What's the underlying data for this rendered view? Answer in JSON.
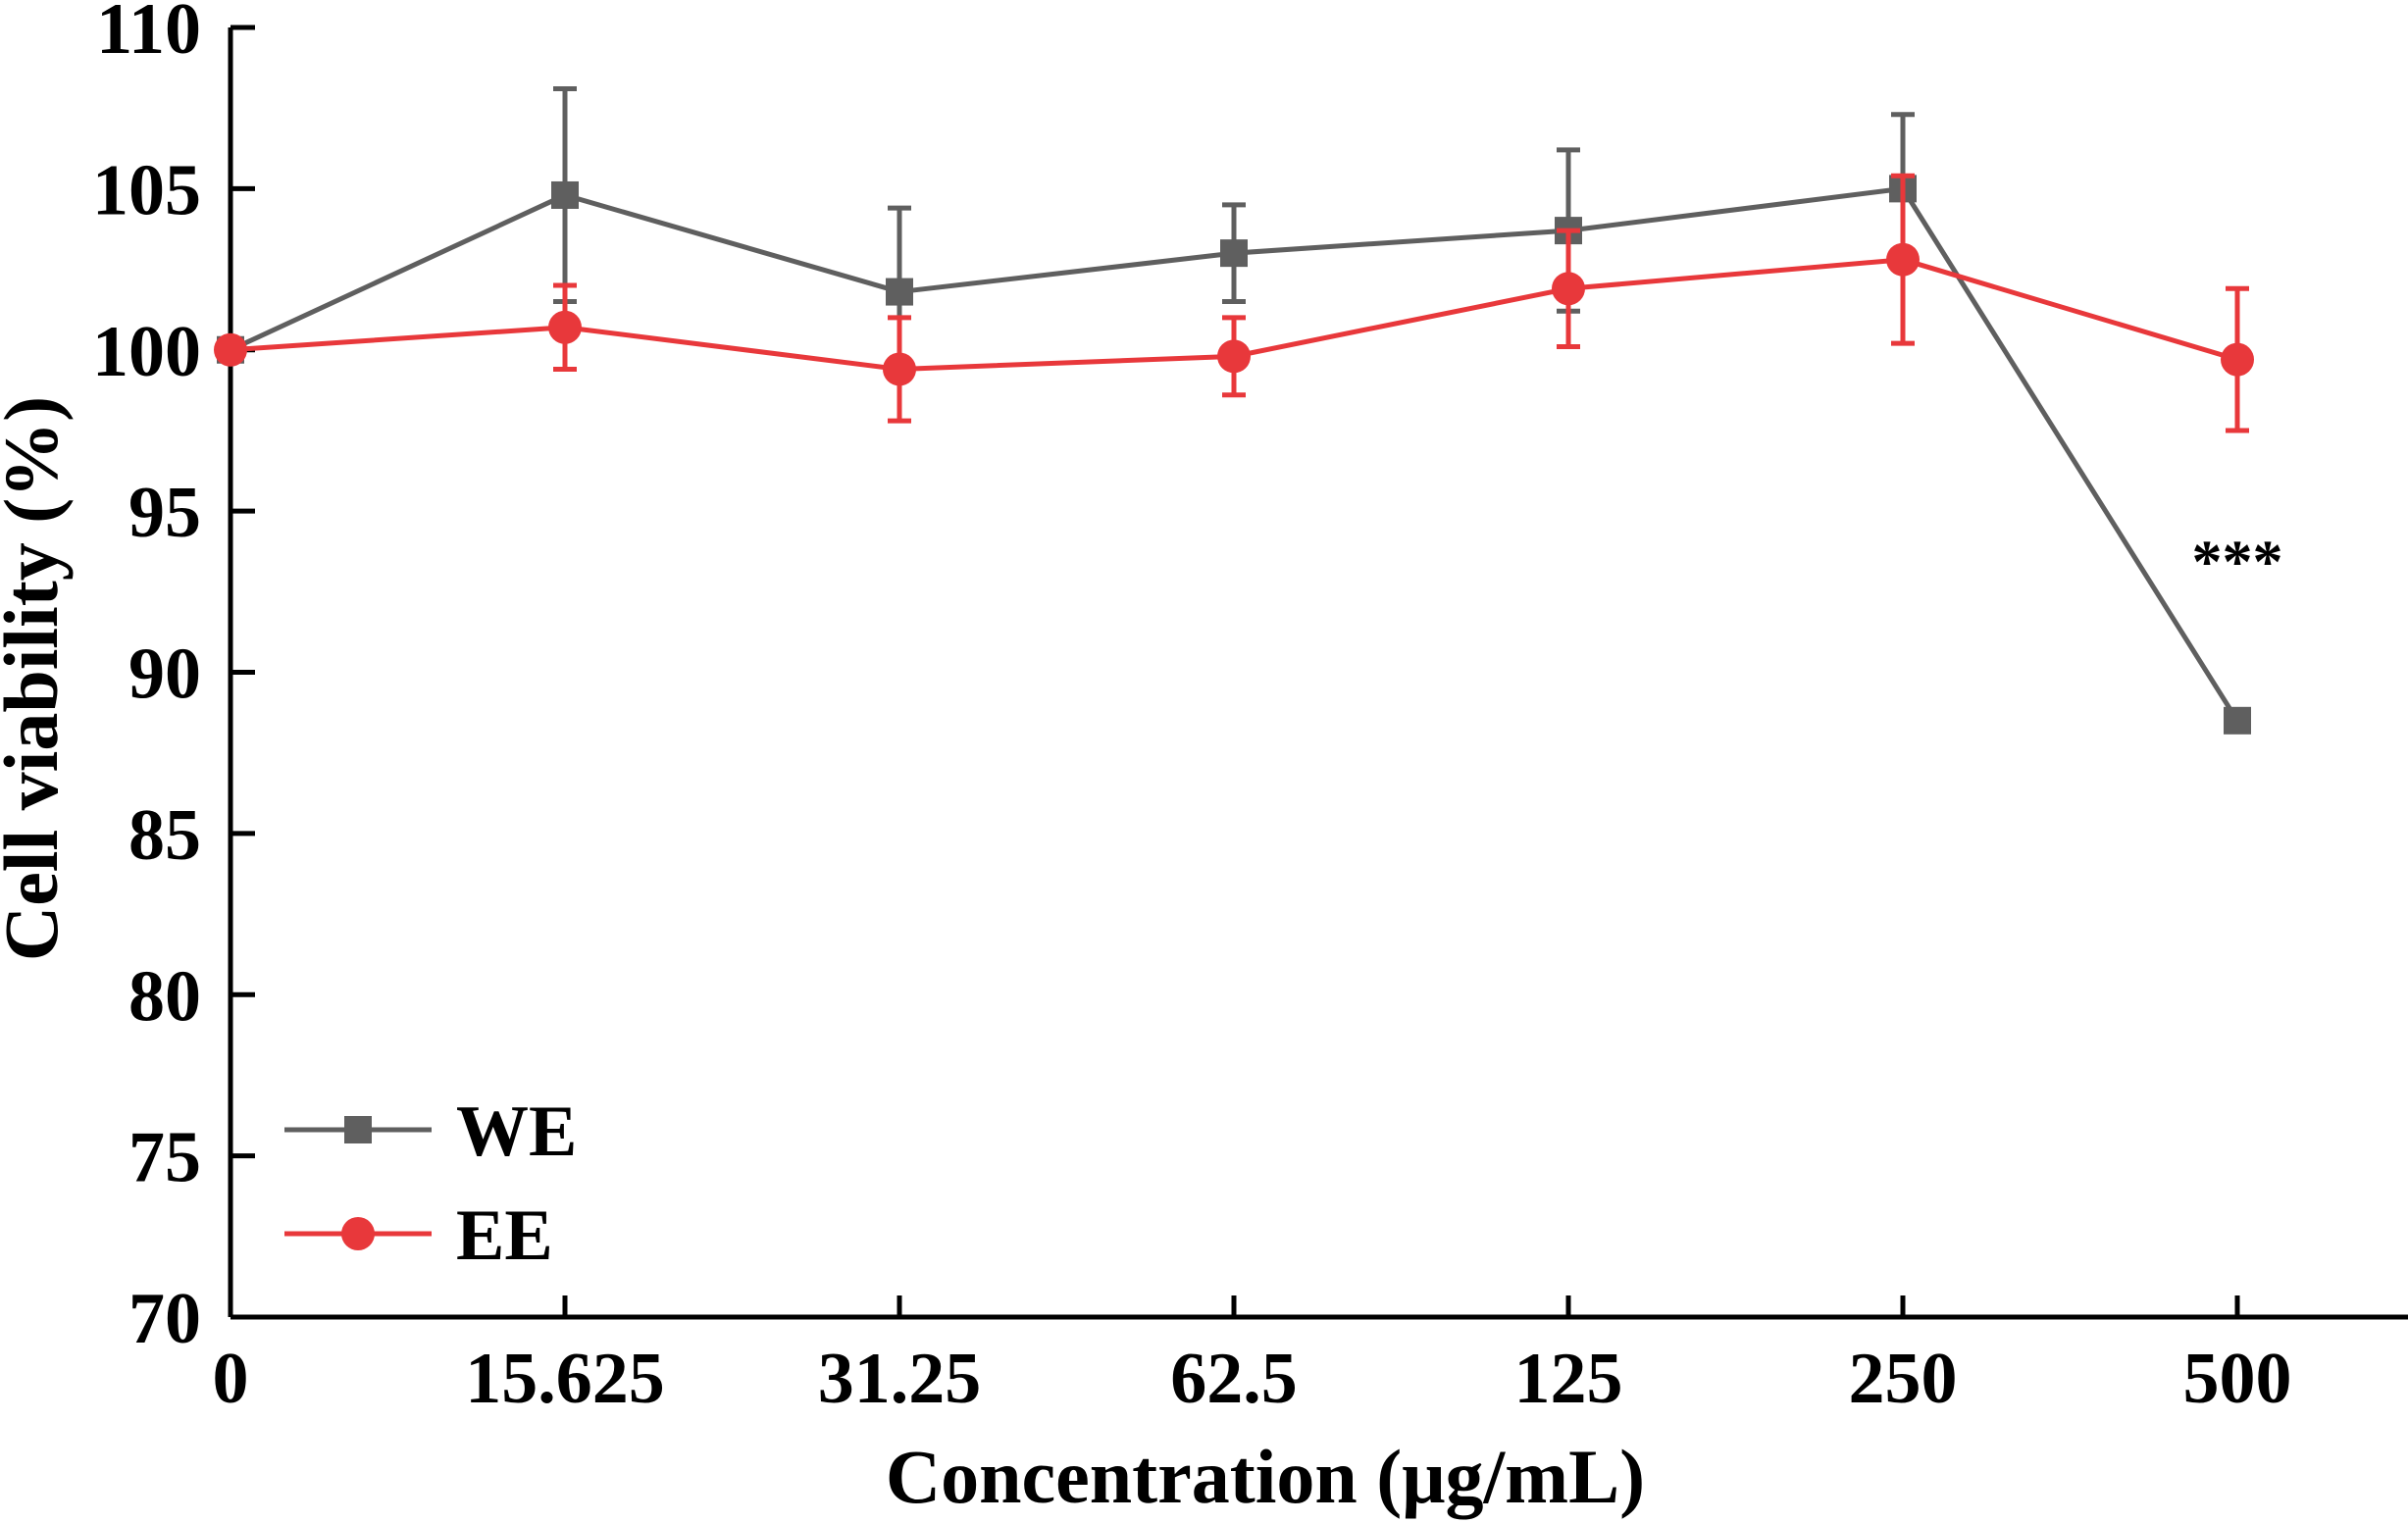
{
  "chart_data": {
    "type": "line",
    "title": "",
    "xlabel": "Concentration (μg/mL)",
    "ylabel": "Cell viability (%)",
    "categories": [
      "0",
      "15.625",
      "31.25",
      "62.5",
      "125",
      "250",
      "500"
    ],
    "ylim": [
      70,
      110
    ],
    "yticks": [
      "70",
      "75",
      "80",
      "85",
      "90",
      "95",
      "100",
      "105",
      "110"
    ],
    "grid": false,
    "legend_position": "bottom-left",
    "colors": {
      "axis": "#000000"
    },
    "series": [
      {
        "name": "WE",
        "marker": "square",
        "color": "#5f5f5f",
        "values": [
          100.0,
          104.8,
          101.8,
          103.0,
          103.7,
          105.0,
          88.5
        ],
        "errors": [
          0,
          3.3,
          2.6,
          1.5,
          2.5,
          2.3,
          0
        ]
      },
      {
        "name": "EE",
        "marker": "circle",
        "color": "#e8383b",
        "values": [
          100.0,
          100.7,
          99.4,
          99.8,
          101.9,
          102.8,
          99.7
        ],
        "errors": [
          0,
          1.3,
          1.6,
          1.2,
          1.8,
          2.6,
          2.2
        ]
      }
    ],
    "annotations": [
      {
        "text": "***",
        "category": "500",
        "y": 92.8
      }
    ]
  }
}
